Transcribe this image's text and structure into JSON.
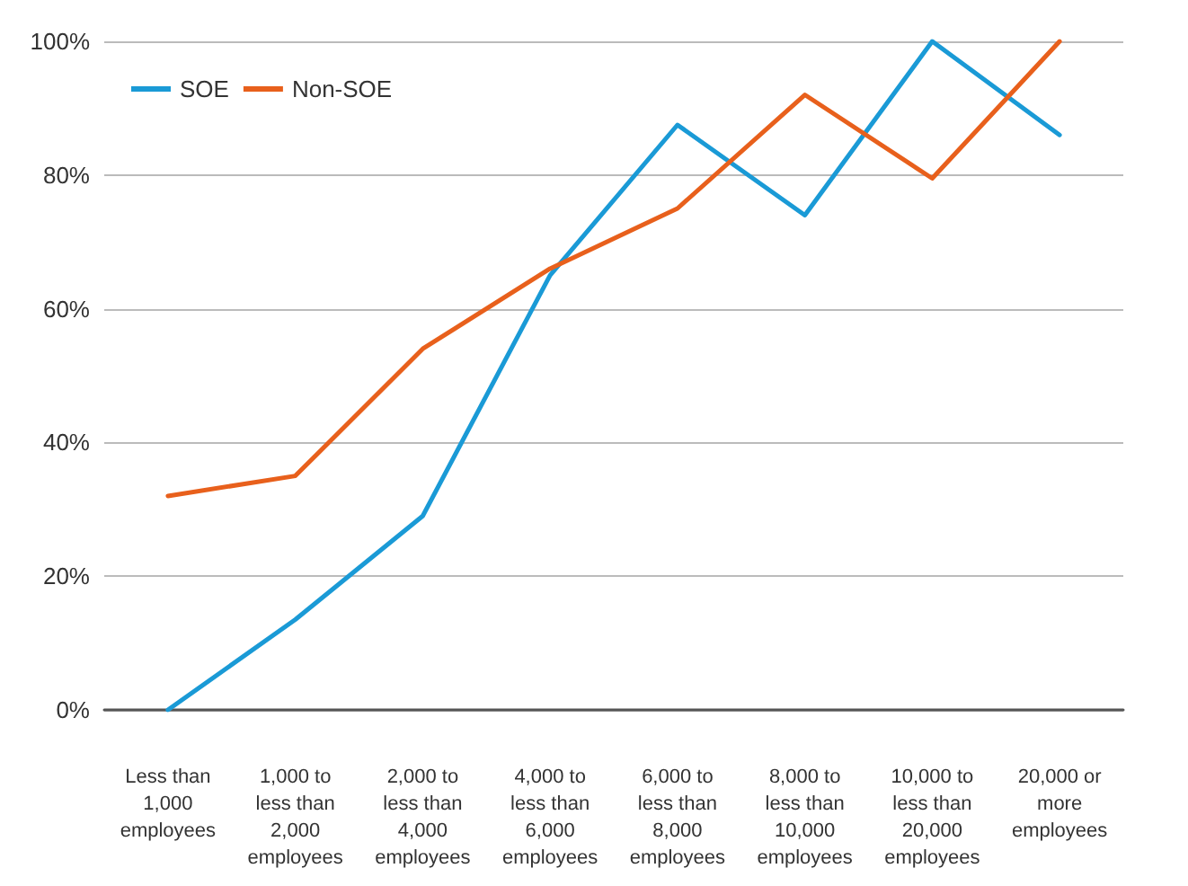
{
  "chart_data": {
    "type": "line",
    "categories": [
      "Less than 1,000 employees",
      "1,000 to less than 2,000 employees",
      "2,000 to less than 4,000 employees",
      "4,000 to less than 6,000 employees",
      "6,000 to less than 8,000 employees",
      "8,000 to less than 10,000 employees",
      "10,000 to less than 20,000 employees",
      "20,000 or more employees"
    ],
    "series": [
      {
        "name": "SOE",
        "color": "#1a9ad6",
        "values": [
          0,
          13.5,
          29,
          65,
          87.5,
          74,
          100,
          86
        ]
      },
      {
        "name": "Non-SOE",
        "color": "#e8601c",
        "values": [
          32,
          35,
          54,
          66,
          75,
          92,
          79.5,
          100
        ]
      }
    ],
    "ylim": [
      0,
      100
    ],
    "yticks": [
      {
        "value": 0,
        "label": "0%"
      },
      {
        "value": 20,
        "label": "20%"
      },
      {
        "value": 40,
        "label": "40%"
      },
      {
        "value": 60,
        "label": "60%"
      },
      {
        "value": 80,
        "label": "80%"
      },
      {
        "value": 100,
        "label": "100%"
      }
    ],
    "grid": "y",
    "legend": "top left",
    "marker": "none",
    "line_style": "solid"
  }
}
